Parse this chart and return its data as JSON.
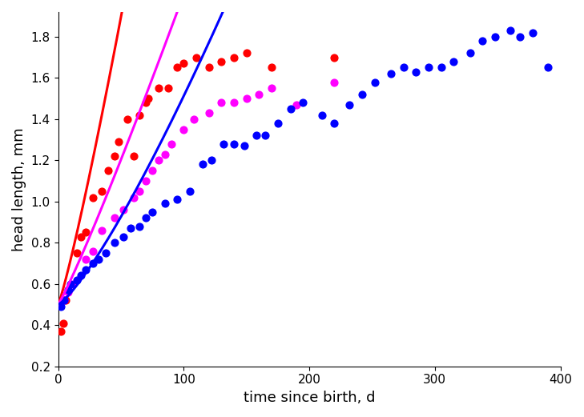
{
  "title": "",
  "xlabel": "time since birth, d",
  "ylabel": "head length, mm",
  "xlim": [
    0,
    400
  ],
  "ylim": [
    0.2,
    1.92
  ],
  "xticks": [
    0,
    100,
    200,
    300,
    400
  ],
  "yticks": [
    0.2,
    0.4,
    0.6,
    0.8,
    1.0,
    1.2,
    1.4,
    1.6,
    1.8
  ],
  "red_scatter": [
    [
      2,
      0.37
    ],
    [
      4,
      0.41
    ],
    [
      6,
      0.52
    ],
    [
      15,
      0.75
    ],
    [
      18,
      0.83
    ],
    [
      22,
      0.85
    ],
    [
      28,
      1.02
    ],
    [
      35,
      1.05
    ],
    [
      40,
      1.15
    ],
    [
      45,
      1.22
    ],
    [
      48,
      1.29
    ],
    [
      55,
      1.4
    ],
    [
      60,
      1.22
    ],
    [
      65,
      1.42
    ],
    [
      70,
      1.48
    ],
    [
      72,
      1.5
    ],
    [
      80,
      1.55
    ],
    [
      88,
      1.55
    ],
    [
      95,
      1.65
    ],
    [
      100,
      1.67
    ],
    [
      110,
      1.7
    ],
    [
      120,
      1.65
    ],
    [
      130,
      1.68
    ],
    [
      140,
      1.7
    ],
    [
      150,
      1.72
    ],
    [
      170,
      1.65
    ],
    [
      220,
      1.7
    ]
  ],
  "magenta_scatter": [
    [
      5,
      0.52
    ],
    [
      8,
      0.56
    ],
    [
      12,
      0.6
    ],
    [
      22,
      0.72
    ],
    [
      28,
      0.76
    ],
    [
      35,
      0.86
    ],
    [
      45,
      0.92
    ],
    [
      52,
      0.96
    ],
    [
      60,
      1.02
    ],
    [
      65,
      1.05
    ],
    [
      70,
      1.1
    ],
    [
      75,
      1.15
    ],
    [
      80,
      1.2
    ],
    [
      85,
      1.23
    ],
    [
      90,
      1.28
    ],
    [
      100,
      1.35
    ],
    [
      108,
      1.4
    ],
    [
      120,
      1.43
    ],
    [
      130,
      1.48
    ],
    [
      140,
      1.48
    ],
    [
      150,
      1.5
    ],
    [
      160,
      1.52
    ],
    [
      170,
      1.55
    ],
    [
      190,
      1.47
    ],
    [
      220,
      1.58
    ]
  ],
  "blue_scatter": [
    [
      2,
      0.49
    ],
    [
      5,
      0.52
    ],
    [
      8,
      0.57
    ],
    [
      10,
      0.6
    ],
    [
      15,
      0.62
    ],
    [
      18,
      0.64
    ],
    [
      22,
      0.67
    ],
    [
      28,
      0.7
    ],
    [
      32,
      0.72
    ],
    [
      38,
      0.75
    ],
    [
      45,
      0.8
    ],
    [
      52,
      0.83
    ],
    [
      58,
      0.87
    ],
    [
      65,
      0.88
    ],
    [
      70,
      0.92
    ],
    [
      75,
      0.95
    ],
    [
      85,
      0.99
    ],
    [
      95,
      1.01
    ],
    [
      105,
      1.05
    ],
    [
      115,
      1.18
    ],
    [
      122,
      1.2
    ],
    [
      132,
      1.28
    ],
    [
      140,
      1.28
    ],
    [
      148,
      1.27
    ],
    [
      158,
      1.32
    ],
    [
      165,
      1.32
    ],
    [
      175,
      1.38
    ],
    [
      185,
      1.45
    ],
    [
      195,
      1.48
    ],
    [
      210,
      1.42
    ],
    [
      220,
      1.38
    ],
    [
      232,
      1.47
    ],
    [
      242,
      1.52
    ],
    [
      252,
      1.58
    ],
    [
      265,
      1.62
    ],
    [
      275,
      1.65
    ],
    [
      285,
      1.63
    ],
    [
      295,
      1.65
    ],
    [
      305,
      1.65
    ],
    [
      315,
      1.68
    ],
    [
      328,
      1.72
    ],
    [
      338,
      1.78
    ],
    [
      348,
      1.8
    ],
    [
      360,
      1.83
    ],
    [
      368,
      1.8
    ],
    [
      378,
      1.82
    ],
    [
      390,
      1.65
    ]
  ],
  "red_curve": {
    "L0": 0.5,
    "k": 0.0155,
    "alpha": 1.15
  },
  "magenta_curve": {
    "L0": 0.5,
    "k": 0.0095,
    "alpha": 1.1
  },
  "blue_curve": {
    "L0": 0.5,
    "k": 0.0032,
    "alpha": 1.25
  },
  "colors": {
    "red": "#FF0000",
    "magenta": "#FF00FF",
    "blue": "#0000FF"
  },
  "scatter_size": 40,
  "line_width": 2.2,
  "background_color": "#FFFFFF"
}
